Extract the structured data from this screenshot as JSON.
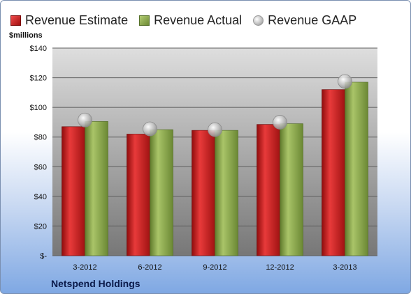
{
  "legend": {
    "estimate": "Revenue Estimate",
    "actual": "Revenue Actual",
    "gaap": "Revenue GAAP"
  },
  "units_label": "$millions",
  "company": "Netspend Holdings",
  "colors": {
    "estimate": "#c0181b",
    "actual": "#8aa84a",
    "gaap": "#bcbcbc",
    "plot_bg_top": "#dcdcdc",
    "plot_bg_bottom": "#7b7b7b"
  },
  "chart_data": {
    "type": "bar",
    "categories": [
      "3-2012",
      "6-2012",
      "9-2012",
      "12-2012",
      "3-2013"
    ],
    "series": [
      {
        "name": "Revenue Estimate",
        "values": [
          87,
          82,
          84.5,
          88.5,
          112
        ]
      },
      {
        "name": "Revenue Actual",
        "values": [
          90.5,
          85,
          84.5,
          89,
          117
        ]
      },
      {
        "name": "Revenue GAAP",
        "values": [
          91.5,
          85.5,
          85,
          90,
          117.5
        ],
        "style": "marker"
      }
    ],
    "ylabel": "$millions",
    "ylim": [
      0,
      140
    ],
    "yticks": [
      0,
      20,
      40,
      60,
      80,
      100,
      120,
      140
    ],
    "ytick_labels": [
      "$-",
      "$20",
      "$40",
      "$60",
      "$80",
      "$100",
      "$120",
      "$140"
    ],
    "grid": true,
    "legend_position": "top"
  }
}
